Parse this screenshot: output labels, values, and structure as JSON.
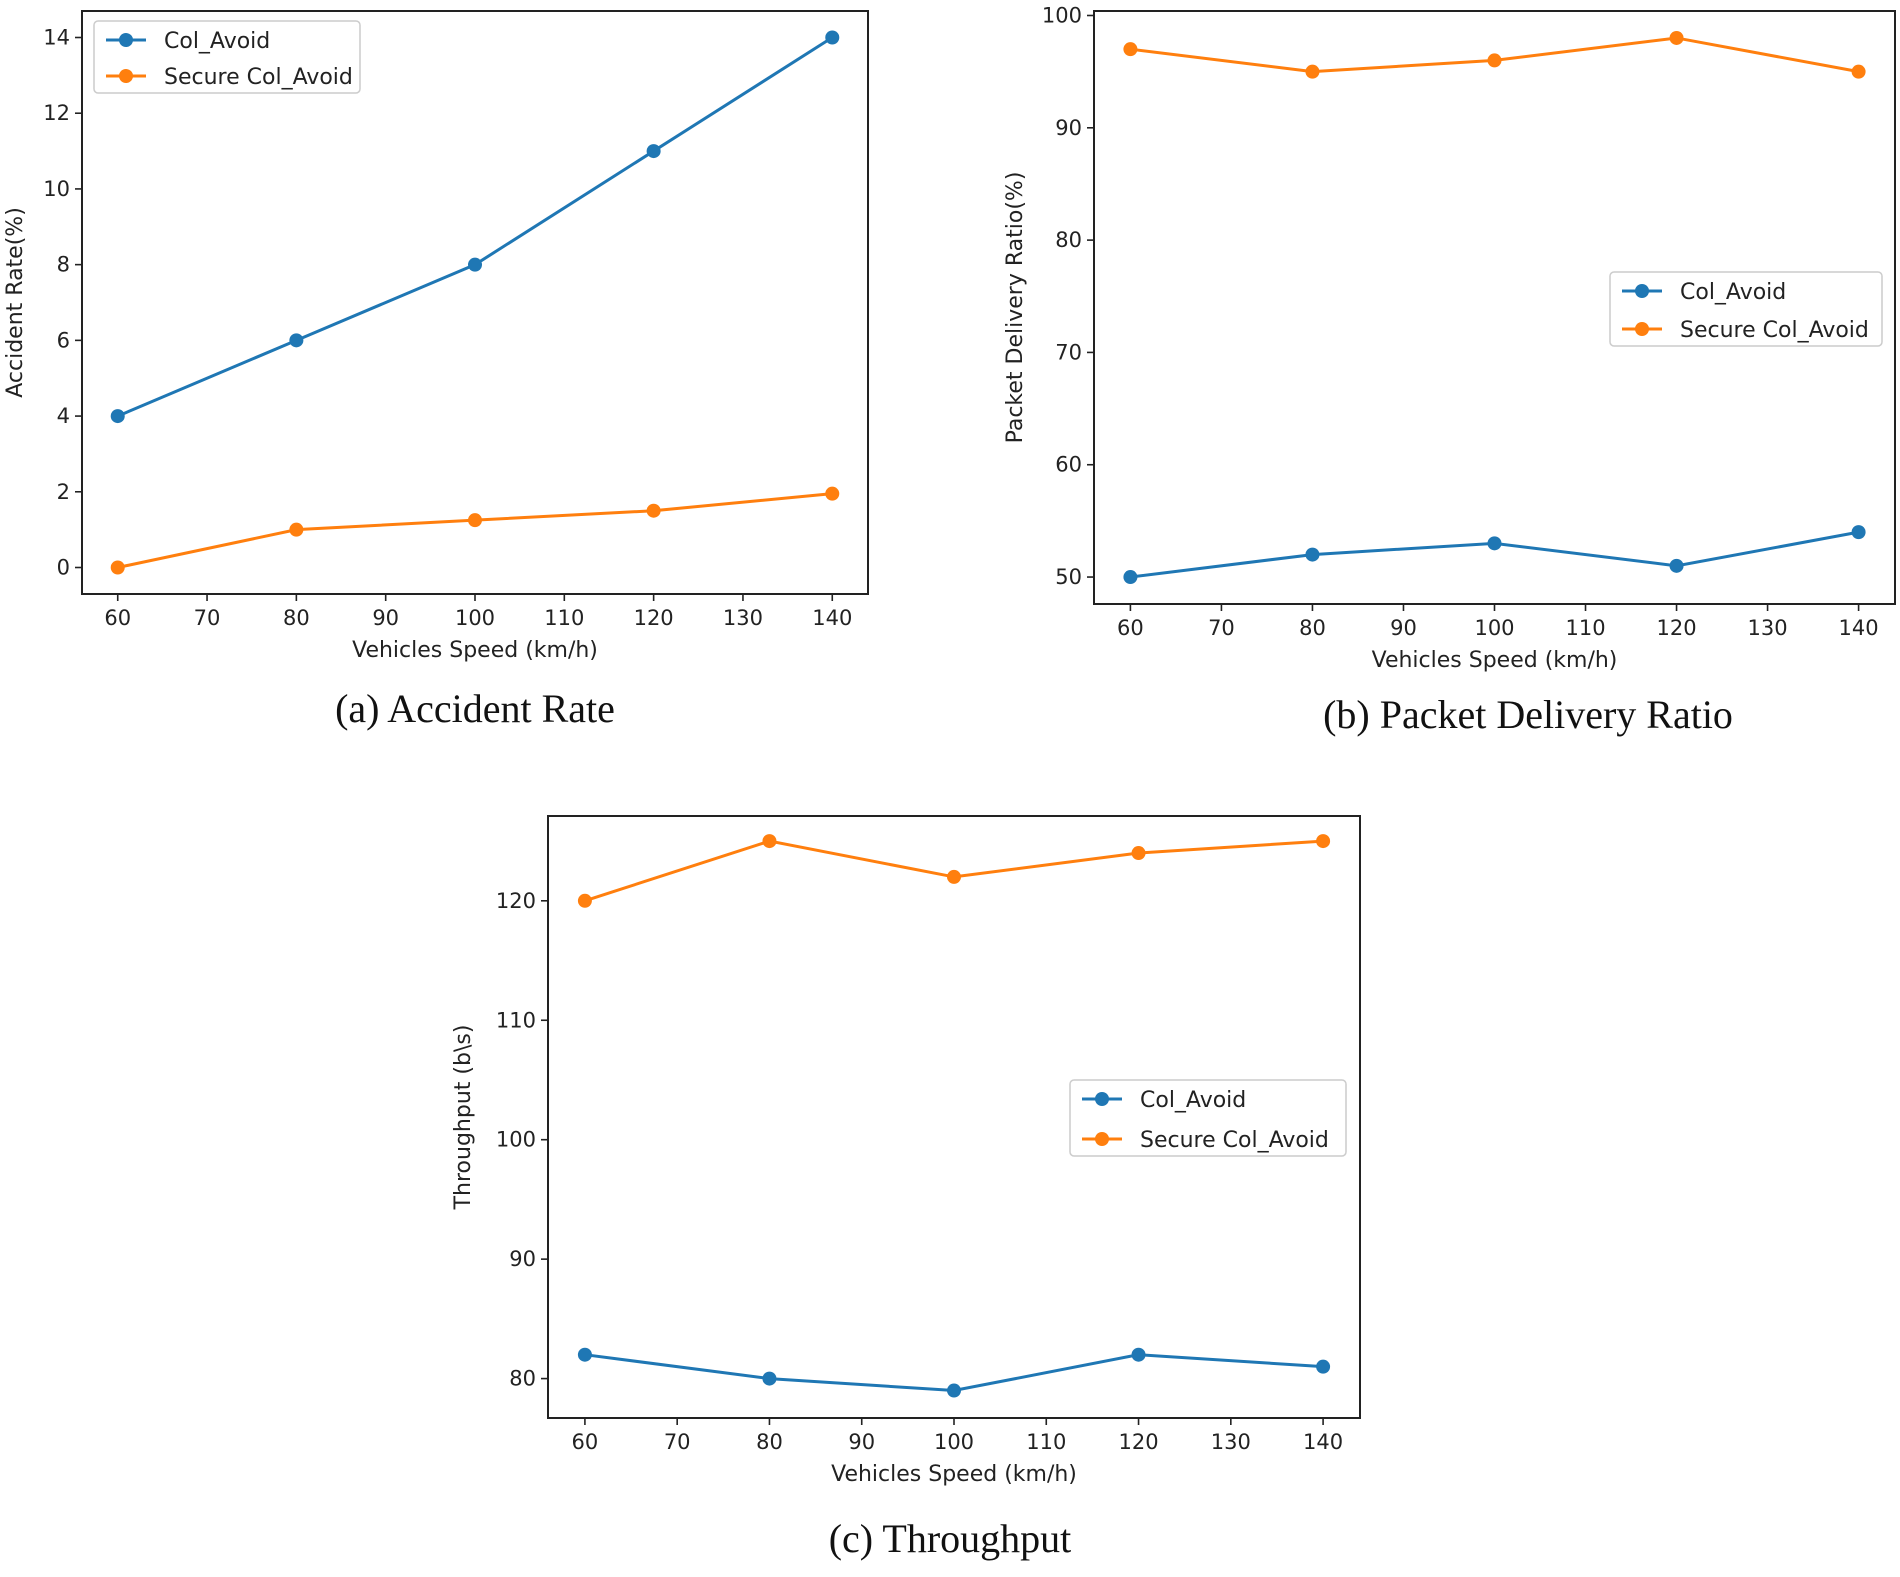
{
  "chart_data": [
    {
      "type": "line",
      "id": "a",
      "caption": "(a) Accident Rate",
      "xlabel": "Vehicles Speed (km/h)",
      "ylabel": "Accident Rate(%)",
      "x": [
        60,
        80,
        100,
        120,
        140
      ],
      "xticks": [
        60,
        70,
        80,
        90,
        100,
        110,
        120,
        130,
        140
      ],
      "yticks": [
        0,
        2,
        4,
        6,
        8,
        10,
        12,
        14
      ],
      "xlim": [
        56,
        144
      ],
      "ylim": [
        -0.7,
        14.7
      ],
      "legend": "top-left",
      "series": [
        {
          "name": "Col_Avoid",
          "color": "#1f77b4",
          "values": [
            4,
            6,
            8,
            11,
            14
          ]
        },
        {
          "name": "Secure Col_Avoid",
          "color": "#ff7f0e",
          "values": [
            0,
            1,
            1.25,
            1.5,
            1.95
          ]
        }
      ]
    },
    {
      "type": "line",
      "id": "b",
      "caption": "(b) Packet Delivery Ratio",
      "xlabel": "Vehicles Speed (km/h)",
      "ylabel": "Packet Delivery Ratio(%)",
      "x": [
        60,
        80,
        100,
        120,
        140
      ],
      "xticks": [
        60,
        70,
        80,
        90,
        100,
        110,
        120,
        130,
        140
      ],
      "yticks": [
        50,
        60,
        70,
        80,
        90,
        100
      ],
      "xlim": [
        56,
        144
      ],
      "ylim": [
        47.6,
        100.4
      ],
      "legend": "center-right",
      "series": [
        {
          "name": "Col_Avoid",
          "color": "#1f77b4",
          "values": [
            50,
            52,
            53,
            51,
            54
          ]
        },
        {
          "name": "Secure Col_Avoid",
          "color": "#ff7f0e",
          "values": [
            97,
            95,
            96,
            98,
            95
          ]
        }
      ]
    },
    {
      "type": "line",
      "id": "c",
      "caption": "(c) Throughput",
      "xlabel": "Vehicles Speed (km/h)",
      "ylabel": "Throughput (b\\s)",
      "x": [
        60,
        80,
        100,
        120,
        140
      ],
      "xticks": [
        60,
        70,
        80,
        90,
        100,
        110,
        120,
        130,
        140
      ],
      "yticks": [
        80,
        90,
        100,
        110,
        120
      ],
      "xlim": [
        56,
        144
      ],
      "ylim": [
        76.7,
        127.1
      ],
      "legend": "center-right",
      "series": [
        {
          "name": "Col_Avoid",
          "color": "#1f77b4",
          "values": [
            82,
            80,
            79,
            82,
            81
          ]
        },
        {
          "name": "Secure Col_Avoid",
          "color": "#ff7f0e",
          "values": [
            120,
            125,
            122,
            124,
            125
          ]
        }
      ]
    }
  ]
}
